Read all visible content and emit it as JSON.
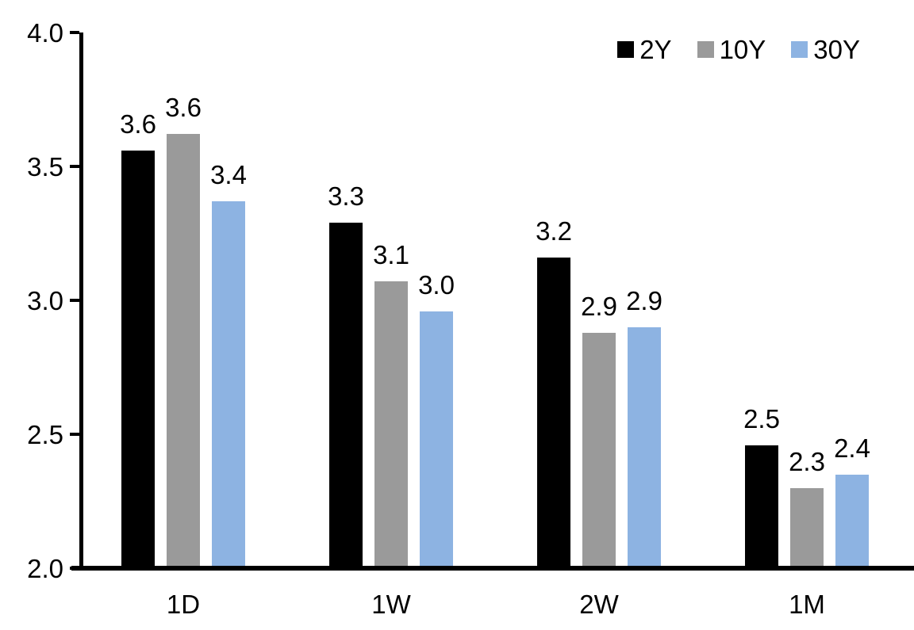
{
  "chart_data": {
    "type": "bar",
    "title": "",
    "xlabel": "",
    "ylabel": "",
    "categories": [
      "1D",
      "1W",
      "2W",
      "1M"
    ],
    "series": [
      {
        "name": "2Y",
        "color": "#000000",
        "values": [
          3.56,
          3.29,
          3.16,
          2.46
        ],
        "labels": [
          "3.6",
          "3.3",
          "3.2",
          "2.5"
        ]
      },
      {
        "name": "10Y",
        "color": "#9A9A9A",
        "values": [
          3.62,
          3.07,
          2.88,
          2.3
        ],
        "labels": [
          "3.6",
          "3.1",
          "2.9",
          "2.3"
        ]
      },
      {
        "name": "30Y",
        "color": "#8DB3E2",
        "values": [
          3.37,
          2.96,
          2.9,
          2.35
        ],
        "labels": [
          "3.4",
          "3.0",
          "2.9",
          "2.4"
        ]
      }
    ],
    "ylim": [
      2.0,
      4.0
    ],
    "yticks": [
      4.0,
      3.5,
      3.0,
      2.5,
      2.0
    ],
    "ytick_labels": [
      "4.0",
      "3.5",
      "3.0",
      "2.5",
      "2.0"
    ],
    "grid": false,
    "legend_position": "top-right",
    "axis_color": "#000000",
    "background_color": "#ffffff"
  }
}
